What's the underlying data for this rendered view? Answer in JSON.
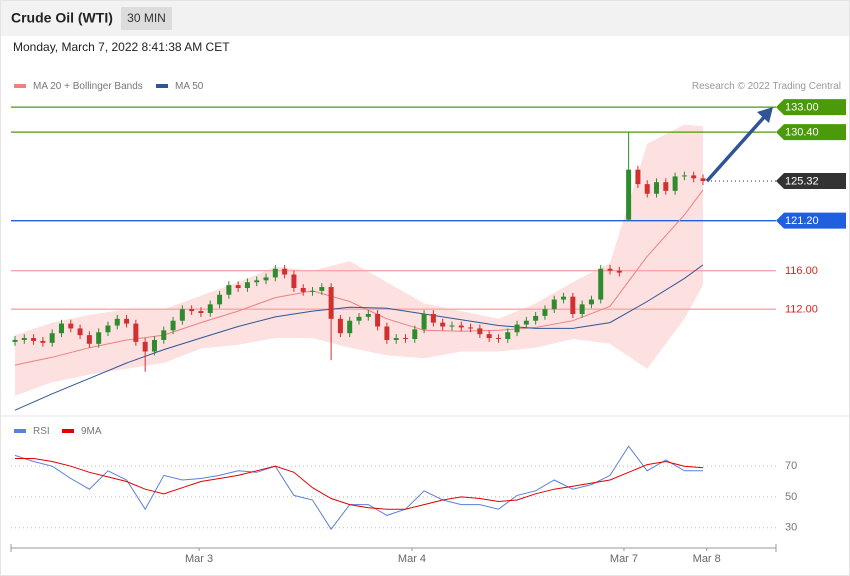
{
  "header": {
    "title": "Crude Oil (WTI)",
    "interval": "30 MIN",
    "timestamp": "Monday, March 7, 2022 8:41:38 AM CET",
    "credit": "Research © 2022 Trading Central"
  },
  "chart_data": [
    {
      "type": "candlestick",
      "xlim": [
        0,
        74
      ],
      "ylim": [
        101,
        137.9
      ],
      "up_color": "#2e8b2e",
      "down_color": "#d0302f",
      "open": [
        108.6,
        108.8,
        109.0,
        108.7,
        108.5,
        109.5,
        110.5,
        110.0,
        109.3,
        108.4,
        109.6,
        110.3,
        111.0,
        110.5,
        108.6,
        107.6,
        108.8,
        109.8,
        110.8,
        112.0,
        111.8,
        111.6,
        112.5,
        113.5,
        114.5,
        114.2,
        114.8,
        115.0,
        115.3,
        116.2,
        115.6,
        114.2,
        113.8,
        113.9,
        114.3,
        111.0,
        109.5,
        110.8,
        111.2,
        111.5,
        110.2,
        108.8,
        109.0,
        108.9,
        109.9,
        111.5,
        110.6,
        110.2,
        110.3,
        110.1,
        110.0,
        109.4,
        109.0,
        108.9,
        109.6,
        110.4,
        110.8,
        111.3,
        112.0,
        113.0,
        113.3,
        111.5,
        112.5,
        113.0,
        116.2,
        116.0,
        121.3,
        126.5,
        125.0,
        124.0,
        125.2,
        124.3,
        125.8,
        125.9,
        125.6
      ],
      "high": [
        109.2,
        109.4,
        109.4,
        109.1,
        109.9,
        110.9,
        110.9,
        110.4,
        109.7,
        110.0,
        110.7,
        111.4,
        111.4,
        110.9,
        109.0,
        109.2,
        110.2,
        111.2,
        112.4,
        112.4,
        112.2,
        112.9,
        113.9,
        114.9,
        114.9,
        115.2,
        115.4,
        115.7,
        116.6,
        116.6,
        116.0,
        114.6,
        114.3,
        114.7,
        114.7,
        111.4,
        111.2,
        111.6,
        111.9,
        111.9,
        110.6,
        109.4,
        109.4,
        110.3,
        111.9,
        111.9,
        111.0,
        110.7,
        110.7,
        110.5,
        110.4,
        109.8,
        109.4,
        110.0,
        110.8,
        111.2,
        111.7,
        112.4,
        113.4,
        113.7,
        113.7,
        112.9,
        113.4,
        116.6,
        116.6,
        116.4,
        130.4,
        126.9,
        125.4,
        125.6,
        125.6,
        126.2,
        126.3,
        126.3,
        126.0
      ],
      "low": [
        108.2,
        108.4,
        108.3,
        108.1,
        108.1,
        109.1,
        109.6,
        108.9,
        108.0,
        108.0,
        109.2,
        109.9,
        110.1,
        108.2,
        105.5,
        107.2,
        108.4,
        109.4,
        110.4,
        111.4,
        111.2,
        111.2,
        112.1,
        113.1,
        113.8,
        113.8,
        114.4,
        114.6,
        114.9,
        115.2,
        113.8,
        113.4,
        113.4,
        113.5,
        106.7,
        109.1,
        109.1,
        110.4,
        110.8,
        109.8,
        108.4,
        108.4,
        108.5,
        108.5,
        109.5,
        110.2,
        109.8,
        109.8,
        109.7,
        109.6,
        109.0,
        108.6,
        108.5,
        108.5,
        109.2,
        110.0,
        110.4,
        110.9,
        111.6,
        112.6,
        111.1,
        111.1,
        112.1,
        112.6,
        115.6,
        115.4,
        121.2,
        124.6,
        123.6,
        123.6,
        123.9,
        123.9,
        125.4,
        125.2,
        124.9
      ],
      "close": [
        108.8,
        109.0,
        108.7,
        108.5,
        109.5,
        110.5,
        110.0,
        109.3,
        108.4,
        109.6,
        110.3,
        111.0,
        110.5,
        108.6,
        107.6,
        108.8,
        109.8,
        110.8,
        112.0,
        111.8,
        111.6,
        112.5,
        113.5,
        114.5,
        114.2,
        114.8,
        115.0,
        115.3,
        116.2,
        115.6,
        114.2,
        113.8,
        113.9,
        114.3,
        111.0,
        109.5,
        110.8,
        111.2,
        111.5,
        110.2,
        108.8,
        109.0,
        108.9,
        109.9,
        111.5,
        110.6,
        110.2,
        110.3,
        110.1,
        110.0,
        109.4,
        109.0,
        108.9,
        109.6,
        110.4,
        110.8,
        111.3,
        112.0,
        113.0,
        113.3,
        111.5,
        112.5,
        113.0,
        116.2,
        116.0,
        115.8,
        126.5,
        125.0,
        124.0,
        125.2,
        124.3,
        125.8,
        125.9,
        125.6,
        125.32
      ],
      "series": [
        {
          "name": "MA 20 + Bollinger Bands",
          "color": "#f08080",
          "band_color": "#fde0e0",
          "x": [
            0,
            4,
            8,
            12,
            16,
            20,
            24,
            28,
            32,
            36,
            40,
            44,
            48,
            52,
            56,
            60,
            64,
            68,
            72,
            74
          ],
          "values": [
            106.2,
            107.0,
            108.0,
            108.8,
            109.3,
            110.6,
            111.8,
            113.2,
            113.9,
            112.8,
            111.0,
            109.8,
            109.7,
            109.8,
            110.1,
            110.8,
            112.3,
            117.5,
            121.8,
            124.4
          ],
          "upper": [
            109.3,
            110.6,
            111.4,
            112.0,
            112.0,
            113.4,
            114.8,
            116.4,
            116.0,
            117.0,
            114.8,
            112.6,
            111.8,
            111.0,
            112.6,
            114.8,
            116.8,
            129.2,
            131.2,
            131.0
          ],
          "lower": [
            103.0,
            104.4,
            105.2,
            105.8,
            106.4,
            107.9,
            108.3,
            109.0,
            109.0,
            108.0,
            107.2,
            106.9,
            107.6,
            107.6,
            108.0,
            108.9,
            108.4,
            105.8,
            111.0,
            114.5
          ]
        },
        {
          "name": "MA 50",
          "color": "#2f5597",
          "x": [
            0,
            4,
            8,
            12,
            16,
            20,
            24,
            28,
            32,
            36,
            40,
            44,
            48,
            52,
            56,
            60,
            64,
            68,
            72,
            74
          ],
          "values": [
            101.5,
            103.2,
            104.8,
            106.4,
            107.8,
            109.0,
            110.2,
            111.2,
            111.8,
            112.2,
            112.1,
            111.5,
            110.9,
            110.3,
            110.0,
            110.0,
            110.6,
            112.8,
            115.2,
            116.6
          ]
        }
      ],
      "levels": [
        {
          "value": 133,
          "label": "133.00",
          "color": "#4a9a0a",
          "style": "box",
          "line": "solid"
        },
        {
          "value": 130.4,
          "label": "130.40",
          "color": "#4a9a0a",
          "style": "box",
          "line": "solid"
        },
        {
          "value": 125.32,
          "label": "125.32",
          "color": "#333333",
          "style": "box",
          "line": "dotted"
        },
        {
          "value": 121.2,
          "label": "121.20",
          "color": "#1f5fe0",
          "style": "box",
          "line": "solid"
        },
        {
          "value": 116,
          "label": "116.00",
          "color": "#e02020",
          "style": "text",
          "line": "solid"
        },
        {
          "value": 112,
          "label": "112.00",
          "color": "#e02020",
          "style": "text",
          "line": "solid"
        }
      ]
    },
    {
      "type": "line",
      "xlim": [
        0,
        74
      ],
      "ylim": [
        22,
        87
      ],
      "yticks": [
        70,
        50,
        30
      ],
      "grid": true,
      "xticks": [
        {
          "value": 19.8,
          "label": "Mar 3"
        },
        {
          "value": 42.7,
          "label": "Mar 4"
        },
        {
          "value": 65.5,
          "label": "Mar 7"
        },
        {
          "value": 74.4,
          "label": "Mar 8"
        }
      ],
      "series": [
        {
          "name": "RSI",
          "color": "#5b7fdc",
          "x": [
            0,
            2,
            4,
            6,
            8,
            10,
            12,
            14,
            16,
            18,
            20,
            22,
            24,
            26,
            28,
            30,
            32,
            34,
            36,
            38,
            40,
            42,
            44,
            46,
            48,
            50,
            52,
            54,
            56,
            58,
            60,
            62,
            64,
            66,
            68,
            70,
            72,
            74
          ],
          "values": [
            77,
            73,
            70,
            62,
            55,
            67,
            61,
            42,
            64,
            61,
            62,
            64,
            67,
            66,
            70,
            51,
            48,
            29,
            45,
            45,
            38,
            42,
            54,
            48,
            45,
            45,
            42,
            51,
            54,
            61,
            55,
            58,
            64,
            83,
            67,
            74,
            67,
            67
          ]
        },
        {
          "name": "9MA",
          "color": "#e00000",
          "x": [
            0,
            2,
            4,
            6,
            8,
            10,
            12,
            14,
            16,
            18,
            20,
            22,
            24,
            26,
            28,
            30,
            32,
            34,
            36,
            38,
            40,
            42,
            44,
            46,
            48,
            50,
            52,
            54,
            56,
            58,
            60,
            62,
            64,
            66,
            68,
            70,
            72,
            74
          ],
          "values": [
            75,
            75,
            73,
            70,
            66,
            63,
            60,
            55,
            52,
            56,
            60,
            62,
            64,
            67,
            70,
            66,
            56,
            49,
            45,
            43,
            42,
            42,
            45,
            48,
            50,
            49,
            47,
            48,
            52,
            55,
            57,
            59,
            61,
            66,
            71,
            73,
            70,
            69
          ]
        }
      ]
    }
  ]
}
